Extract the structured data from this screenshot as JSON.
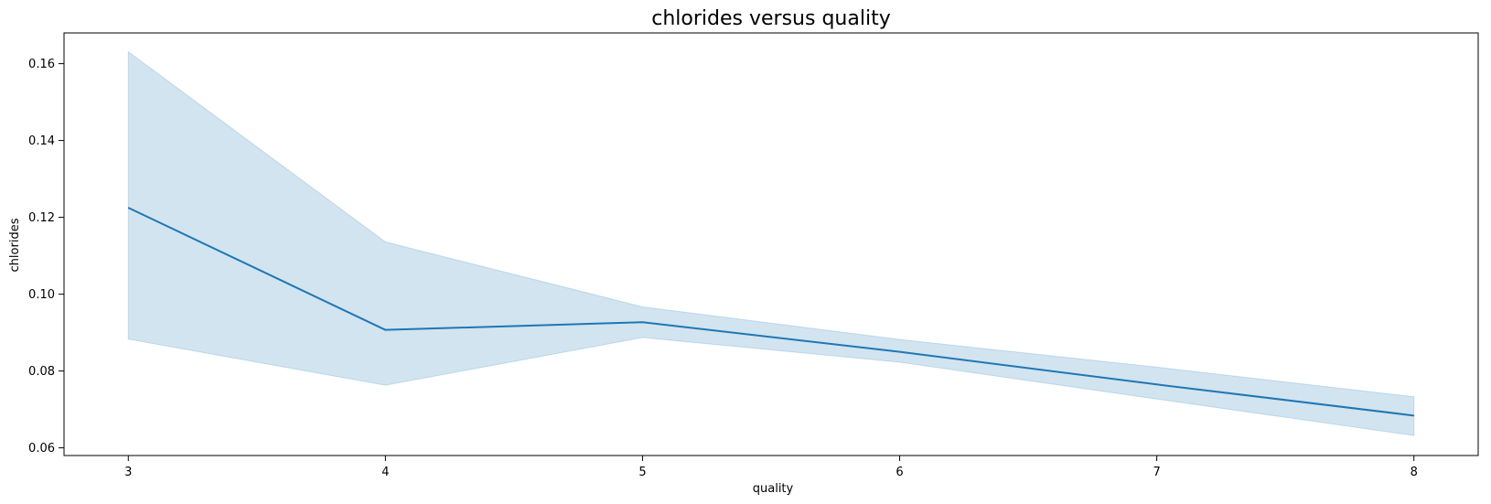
{
  "chart_data": {
    "type": "line",
    "title": "chlorides versus quality",
    "xlabel": "quality",
    "ylabel": "chlorides",
    "x": [
      3,
      4,
      5,
      6,
      7,
      8
    ],
    "series": [
      {
        "values": [
          0.1225,
          0.0907,
          0.0927,
          0.085,
          0.0765,
          0.0684
        ],
        "ci_lower": [
          0.0883,
          0.0763,
          0.0887,
          0.0823,
          0.0727,
          0.0632
        ],
        "ci_upper": [
          0.1631,
          0.1136,
          0.0967,
          0.0882,
          0.081,
          0.0733
        ]
      }
    ],
    "xlim": [
      2.75,
      8.25
    ],
    "ylim": [
      0.058,
      0.168
    ],
    "xticks": [
      3,
      4,
      5,
      6,
      7,
      8
    ],
    "yticks": [
      0.06,
      0.08,
      0.1,
      0.12,
      0.14,
      0.16
    ],
    "ytick_labels": [
      "0.06",
      "0.08",
      "0.10",
      "0.12",
      "0.14",
      "0.16"
    ],
    "grid": false,
    "colors": {
      "line": "#1f77b4",
      "band": "#1f77b4"
    }
  }
}
